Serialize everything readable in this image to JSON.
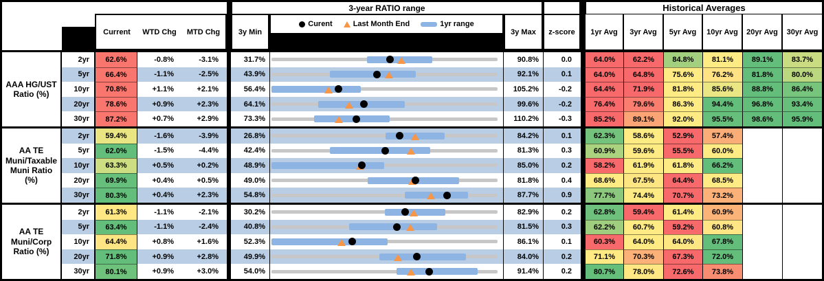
{
  "titles": {
    "range_header": "3-year RATIO range",
    "averages_header": "Historical Averages"
  },
  "legend": {
    "current": "Curent",
    "last_month": "Last Month End",
    "range": "1yr range"
  },
  "columns": {
    "current": "Current",
    "wtd": "WTD Chg",
    "mtd": "MTD Chg",
    "min": "3y Min",
    "max": "3y Max",
    "z": "z-score",
    "avgs": [
      "1yr Avg",
      "3yr Avg",
      "5yr Avg",
      "10yr Avg",
      "20yr Avg",
      "30yr Avg"
    ]
  },
  "colors": {
    "band": "#B9CDE4",
    "bar": "#8DB4E2",
    "track": "#C7C7C7",
    "dot": "#000000",
    "triangle": "#F79646",
    "red": "#F8696B",
    "yellow": "#FFEB84",
    "green": "#63BE7B"
  },
  "chart_data": {
    "type": "table",
    "note": "Each row also depicts a 3-year ratio range strip chart: gray track spans 3y Min..3y Max, blue bar = 1yr range, black dot = current, orange triangle = last month end.",
    "groups": [
      {
        "label_lines": [
          "AAA HG/UST",
          "Ratio (%)"
        ],
        "rows": [
          {
            "tenor": "2yr",
            "current": "62.6%",
            "current_color": "#F8766D",
            "wtd": "-0.8%",
            "mtd": "-3.1%",
            "min": "31.7%",
            "max": "90.8%",
            "z": "0.0",
            "range_chart": {
              "min": 31.7,
              "max": 90.8,
              "current": 62.6,
              "last_month_end": 65.7,
              "range_1yr": [
                56.7,
                73.7
              ]
            },
            "avgs": [
              [
                "64.0%",
                "#F8696B"
              ],
              [
                "62.2%",
                "#F8696B"
              ],
              [
                "84.8%",
                "#A2D07F"
              ],
              [
                "81.1%",
                "#FFEB84"
              ],
              [
                "89.1%",
                "#63BE7B"
              ],
              [
                "83.7%",
                "#C9DC81"
              ]
            ]
          },
          {
            "tenor": "5yr",
            "current": "66.4%",
            "current_color": "#F8766D",
            "wtd": "-1.1%",
            "mtd": "-2.5%",
            "min": "43.9%",
            "max": "92.1%",
            "z": "0.1",
            "range_chart": {
              "min": 43.9,
              "max": 92.1,
              "current": 66.4,
              "last_month_end": 68.9,
              "range_1yr": [
                56.3,
                74.7
              ]
            },
            "avgs": [
              [
                "64.0%",
                "#F8696B"
              ],
              [
                "64.8%",
                "#F8696B"
              ],
              [
                "75.6%",
                "#FFEB84"
              ],
              [
                "76.2%",
                "#FFE283"
              ],
              [
                "81.8%",
                "#63BE7B"
              ],
              [
                "80.0%",
                "#BBD780"
              ]
            ]
          },
          {
            "tenor": "10yr",
            "current": "70.8%",
            "current_color": "#F8766D",
            "wtd": "+1.1%",
            "mtd": "+2.1%",
            "min": "56.4%",
            "max": "105.2%",
            "z": "-0.2",
            "range_chart": {
              "min": 56.4,
              "max": 105.2,
              "current": 70.8,
              "last_month_end": 68.7,
              "range_1yr": [
                56.4,
                75.7
              ]
            },
            "avgs": [
              [
                "64.4%",
                "#F8696B"
              ],
              [
                "71.9%",
                "#F8696B"
              ],
              [
                "81.8%",
                "#FFEB84"
              ],
              [
                "85.6%",
                "#E9E683"
              ],
              [
                "88.8%",
                "#63BE7B"
              ],
              [
                "86.4%",
                "#77C47C"
              ]
            ]
          },
          {
            "tenor": "20yr",
            "current": "78.6%",
            "current_color": "#F8766D",
            "wtd": "+0.9%",
            "mtd": "+2.3%",
            "min": "64.1%",
            "max": "99.6%",
            "z": "-0.2",
            "range_chart": {
              "min": 64.1,
              "max": 99.6,
              "current": 78.6,
              "last_month_end": 76.3,
              "range_1yr": [
                71.4,
                85.0
              ]
            },
            "avgs": [
              [
                "76.4%",
                "#F8696B"
              ],
              [
                "79.6%",
                "#F97E70"
              ],
              [
                "86.3%",
                "#FFEB84"
              ],
              [
                "94.4%",
                "#63BE7B"
              ],
              [
                "96.8%",
                "#63BE7B"
              ],
              [
                "93.4%",
                "#68BF7B"
              ]
            ]
          },
          {
            "tenor": "30yr",
            "current": "87.2%",
            "current_color": "#F8766D",
            "wtd": "+0.7%",
            "mtd": "+2.9%",
            "min": "73.3%",
            "max": "110.2%",
            "z": "-0.3",
            "range_chart": {
              "min": 73.3,
              "max": 110.2,
              "current": 87.2,
              "last_month_end": 84.3,
              "range_1yr": [
                80.2,
                92.6
              ]
            },
            "avgs": [
              [
                "85.2%",
                "#F8696B"
              ],
              [
                "89.1%",
                "#FBA475"
              ],
              [
                "92.0%",
                "#FFEB84"
              ],
              [
                "95.5%",
                "#66BF7B"
              ],
              [
                "98.6%",
                "#63BE7B"
              ],
              [
                "95.9%",
                "#63BE7B"
              ]
            ]
          }
        ]
      },
      {
        "label_lines": [
          "AA TE",
          "Muni/Taxable",
          "Muni Ratio",
          "(%)"
        ],
        "rows": [
          {
            "tenor": "2yr",
            "current": "59.4%",
            "current_color": "#EAE583",
            "wtd": "-1.6%",
            "mtd": "-3.9%",
            "min": "26.8%",
            "max": "84.2%",
            "z": "0.1",
            "range_chart": {
              "min": 26.8,
              "max": 84.2,
              "current": 59.4,
              "last_month_end": 63.3,
              "range_1yr": [
                55.7,
                70.7
              ]
            },
            "avgs": [
              [
                "62.3%",
                "#74C37C"
              ],
              [
                "58.6%",
                "#FFEB84"
              ],
              [
                "52.9%",
                "#F8696B"
              ],
              [
                "57.4%",
                "#FBAD77"
              ],
              [
                "",
                ""
              ],
              [
                "",
                ""
              ]
            ]
          },
          {
            "tenor": "5yr",
            "current": "62.0%",
            "current_color": "#63BE7B",
            "wtd": "-1.5%",
            "mtd": "-4.4%",
            "min": "42.4%",
            "max": "81.3%",
            "z": "0.3",
            "range_chart": {
              "min": 42.4,
              "max": 81.3,
              "current": 62.0,
              "last_month_end": 66.4,
              "range_1yr": [
                52.5,
                69.7
              ]
            },
            "avgs": [
              [
                "60.9%",
                "#ABD37F"
              ],
              [
                "59.6%",
                "#FFEB84"
              ],
              [
                "55.5%",
                "#F8696B"
              ],
              [
                "60.0%",
                "#FFEB84"
              ],
              [
                "",
                ""
              ],
              [
                "",
                ""
              ]
            ]
          },
          {
            "tenor": "10yr",
            "current": "63.3%",
            "current_color": "#CDDD81",
            "wtd": "+0.5%",
            "mtd": "+0.2%",
            "min": "48.9%",
            "max": "85.0%",
            "z": "0.2",
            "range_chart": {
              "min": 48.9,
              "max": 85.0,
              "current": 63.3,
              "last_month_end": 63.1,
              "range_1yr": [
                48.9,
                66.9
              ]
            },
            "avgs": [
              [
                "58.2%",
                "#F8696B"
              ],
              [
                "61.9%",
                "#FFEB84"
              ],
              [
                "61.8%",
                "#FFEB84"
              ],
              [
                "66.2%",
                "#63BE7B"
              ],
              [
                "",
                ""
              ],
              [
                "",
                ""
              ]
            ]
          },
          {
            "tenor": "20yr",
            "current": "69.9%",
            "current_color": "#66BF7B",
            "wtd": "+0.4%",
            "mtd": "+0.5%",
            "min": "49.0%",
            "max": "81.8%",
            "z": "0.4",
            "range_chart": {
              "min": 49.0,
              "max": 81.8,
              "current": 69.9,
              "last_month_end": 69.4,
              "range_1yr": [
                63.0,
                76.2
              ]
            },
            "avgs": [
              [
                "68.6%",
                "#FFEB84"
              ],
              [
                "67.5%",
                "#FEE583"
              ],
              [
                "64.4%",
                "#F8696B"
              ],
              [
                "68.5%",
                "#FFEB84"
              ],
              [
                "",
                ""
              ],
              [
                "",
                ""
              ]
            ]
          },
          {
            "tenor": "30yr",
            "current": "80.3%",
            "current_color": "#63BE7B",
            "wtd": "+0.4%",
            "mtd": "+2.3%",
            "min": "54.8%",
            "max": "87.7%",
            "z": "0.9",
            "range_chart": {
              "min": 54.8,
              "max": 87.7,
              "current": 80.3,
              "last_month_end": 78.0,
              "range_1yr": [
                74.2,
                83.4
              ]
            },
            "avgs": [
              [
                "77.7%",
                "#8BC87D"
              ],
              [
                "74.4%",
                "#FFEB84"
              ],
              [
                "70.7%",
                "#F8696B"
              ],
              [
                "73.2%",
                "#FCB178"
              ],
              [
                "",
                ""
              ],
              [
                "",
                ""
              ]
            ]
          }
        ]
      },
      {
        "label_lines": [
          "AA TE",
          "Muni/Corp",
          "Ratio (%)"
        ],
        "rows": [
          {
            "tenor": "2yr",
            "current": "61.3%",
            "current_color": "#FFE883",
            "wtd": "-1.1%",
            "mtd": "-2.1%",
            "min": "30.2%",
            "max": "82.9%",
            "z": "0.2",
            "range_chart": {
              "min": 30.2,
              "max": 82.9,
              "current": 61.3,
              "last_month_end": 63.4,
              "range_1yr": [
                56.7,
                70.8
              ]
            },
            "avgs": [
              [
                "62.8%",
                "#6EC17C"
              ],
              [
                "59.4%",
                "#F8696B"
              ],
              [
                "61.4%",
                "#FFEB84"
              ],
              [
                "60.9%",
                "#FCB378"
              ],
              [
                "",
                ""
              ],
              [
                "",
                ""
              ]
            ]
          },
          {
            "tenor": "5yr",
            "current": "63.4%",
            "current_color": "#63BE7B",
            "wtd": "-1.1%",
            "mtd": "-2.4%",
            "min": "40.8%",
            "max": "81.5%",
            "z": "0.3",
            "range_chart": {
              "min": 40.8,
              "max": 81.5,
              "current": 63.4,
              "last_month_end": 65.8,
              "range_1yr": [
                54.8,
                70.6
              ]
            },
            "avgs": [
              [
                "62.2%",
                "#9FCF7E"
              ],
              [
                "60.7%",
                "#FFEB84"
              ],
              [
                "59.2%",
                "#F8696B"
              ],
              [
                "60.8%",
                "#FFE583"
              ],
              [
                "",
                ""
              ],
              [
                "",
                ""
              ]
            ]
          },
          {
            "tenor": "10yr",
            "current": "64.4%",
            "current_color": "#FEE583",
            "wtd": "+0.8%",
            "mtd": "+1.6%",
            "min": "52.3%",
            "max": "86.1%",
            "z": "0.1",
            "range_chart": {
              "min": 52.3,
              "max": 86.1,
              "current": 64.4,
              "last_month_end": 62.8,
              "range_1yr": [
                52.3,
                69.7
              ]
            },
            "avgs": [
              [
                "60.3%",
                "#F8696B"
              ],
              [
                "64.0%",
                "#FFEB84"
              ],
              [
                "64.0%",
                "#FEE783"
              ],
              [
                "67.8%",
                "#63BE7B"
              ],
              [
                "",
                ""
              ],
              [
                "",
                ""
              ]
            ]
          },
          {
            "tenor": "20yr",
            "current": "71.8%",
            "current_color": "#63BE7B",
            "wtd": "+0.9%",
            "mtd": "+2.8%",
            "min": "49.9%",
            "max": "84.0%",
            "z": "0.2",
            "range_chart": {
              "min": 49.9,
              "max": 84.0,
              "current": 71.8,
              "last_month_end": 69.0,
              "range_1yr": [
                66.2,
                79.2
              ]
            },
            "avgs": [
              [
                "71.1%",
                "#FFE983"
              ],
              [
                "70.3%",
                "#FBB177"
              ],
              [
                "67.3%",
                "#F8696B"
              ],
              [
                "72.0%",
                "#63BE7B"
              ],
              [
                "",
                ""
              ],
              [
                "",
                ""
              ]
            ]
          },
          {
            "tenor": "30yr",
            "current": "80.1%",
            "current_color": "#6FC27C",
            "wtd": "+0.9%",
            "mtd": "+3.0%",
            "min": "54.0%",
            "max": "91.4%",
            "z": "0.2",
            "range_chart": {
              "min": 54.0,
              "max": 91.4,
              "current": 80.1,
              "last_month_end": 77.1,
              "range_1yr": [
                74.7,
                88.1
              ]
            },
            "avgs": [
              [
                "80.7%",
                "#65BF7B"
              ],
              [
                "78.0%",
                "#FFE883"
              ],
              [
                "72.6%",
                "#F8696B"
              ],
              [
                "73.8%",
                "#F98D72"
              ],
              [
                "",
                ""
              ],
              [
                "",
                ""
              ]
            ]
          }
        ]
      }
    ]
  }
}
